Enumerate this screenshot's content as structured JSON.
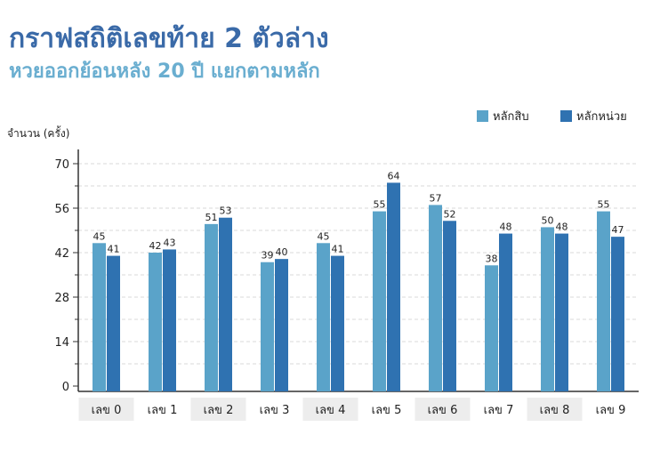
{
  "title": "กราฟสถิติเลขท้าย 2 ตัวล่าง",
  "subtitle": "หวยออกย้อนหลัง 20 ปี แยกตามหลัก",
  "colors": {
    "tens": "#5aa3c9",
    "units": "#2f72b1",
    "grid": "#d9d9d9",
    "axis": "#333333",
    "category_band": "#ededed"
  },
  "chart_data": {
    "type": "bar",
    "ylabel": "จำนวน (ครั้ง)",
    "xlabel": "",
    "ylim": [
      0,
      70
    ],
    "yticks": [
      0,
      14,
      28,
      42,
      56,
      70
    ],
    "grid": true,
    "legend_position": "top-right",
    "categories": [
      "เลข 0",
      "เลข 1",
      "เลข 2",
      "เลข 3",
      "เลข 4",
      "เลข 5",
      "เลข 6",
      "เลข 7",
      "เลข 8",
      "เลข 9"
    ],
    "series": [
      {
        "name": "หลักสิบ",
        "values": [
          45,
          42,
          51,
          39,
          45,
          55,
          57,
          38,
          50,
          55
        ]
      },
      {
        "name": "หลักหน่วย",
        "values": [
          41,
          43,
          53,
          40,
          41,
          64,
          52,
          48,
          48,
          47
        ]
      }
    ]
  }
}
